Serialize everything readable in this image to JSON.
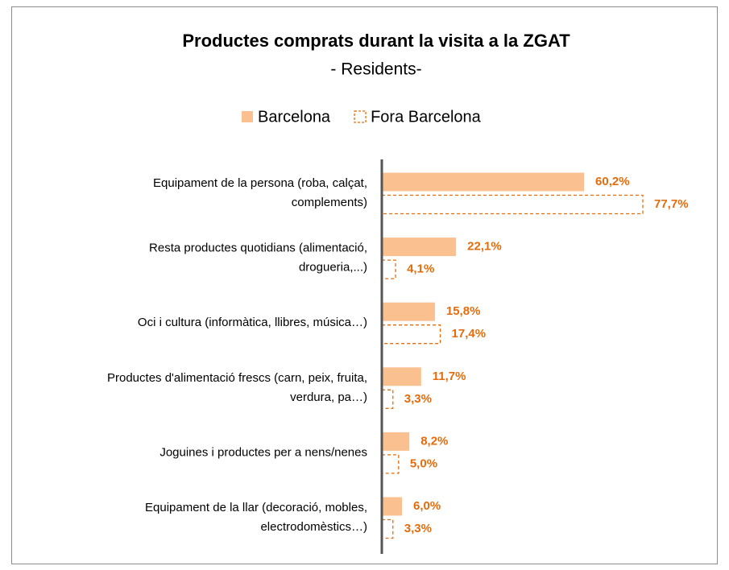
{
  "chart_data": {
    "type": "hbar",
    "title": "Productes comprats durant la visita a la ZGAT",
    "subtitle": "- Residents-",
    "categories": [
      [
        "Equipament de la persona (roba, calçat,",
        "complements)"
      ],
      [
        "Resta productes quotidians (alimentació,",
        "drogueria,...)"
      ],
      [
        "Oci i cultura (informàtica, llibres, música…)"
      ],
      [
        "Productes d'alimentació frescs (carn, peix, fruita,",
        "verdura, pa…)"
      ],
      [
        "Joguines i productes per a nens/nenes"
      ],
      [
        "Equipament de la llar (decoració, mobles,",
        "electrodomèstics…)"
      ]
    ],
    "series": [
      {
        "name": "Barcelona",
        "color": "#fac090",
        "style": "solid",
        "values": [
          60.2,
          22.1,
          15.8,
          11.7,
          8.2,
          6.0
        ],
        "value_labels": [
          "60,2%",
          "22,1%",
          "15,8%",
          "11,7%",
          "8,2%",
          "6,0%"
        ]
      },
      {
        "name": "Fora Barcelona",
        "color": "#e46c0a",
        "style": "dashed",
        "values": [
          77.7,
          4.1,
          17.4,
          3.3,
          5.0,
          3.3
        ],
        "value_labels": [
          "77,7%",
          "4,1%",
          "17,4%",
          "3,3%",
          "5,0%",
          "3,3%"
        ]
      }
    ],
    "legend": "top"
  }
}
